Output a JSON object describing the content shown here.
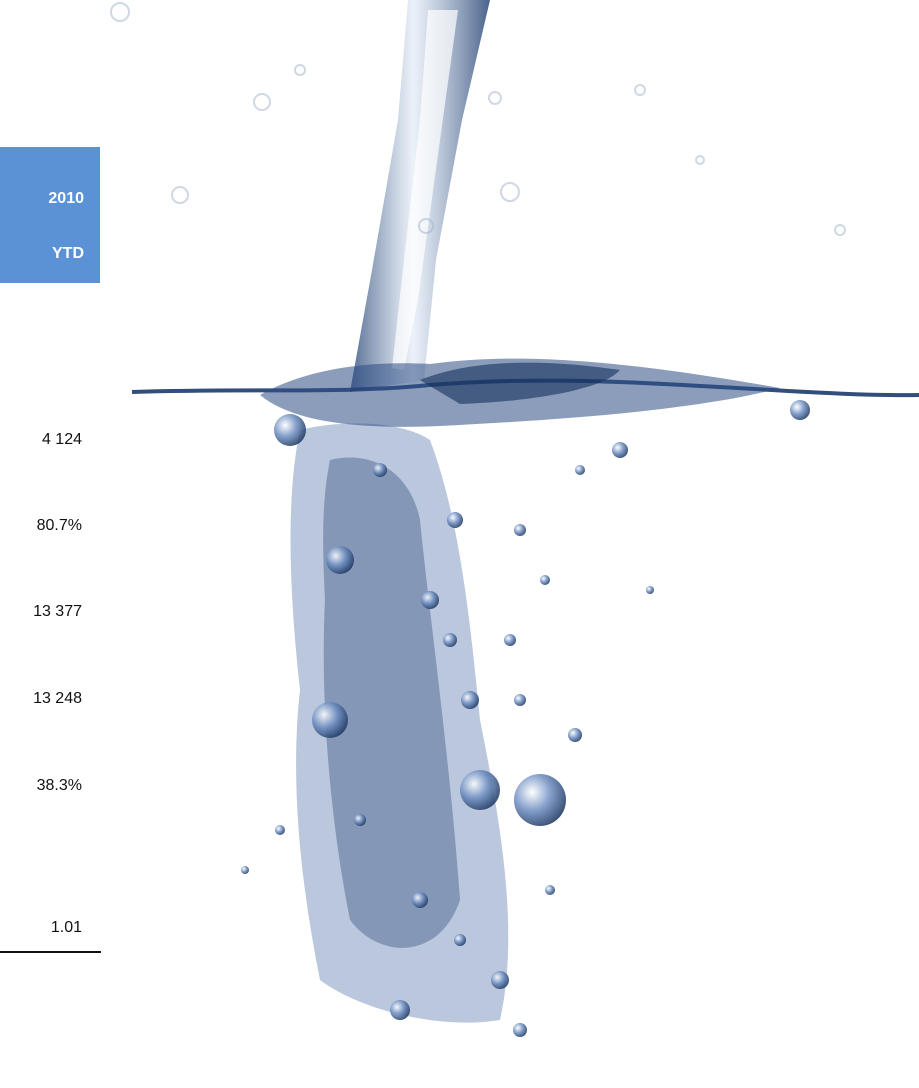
{
  "table": {
    "header": {
      "year": "2010",
      "period": "YTD",
      "fill_color": "#5b92d6"
    },
    "values": [
      "4 124",
      "80.7%",
      "13 377",
      "13 248",
      "38.3%",
      "1.01"
    ]
  },
  "background": {
    "image": "water-splash-photo",
    "water_color": "#1f3f73"
  }
}
